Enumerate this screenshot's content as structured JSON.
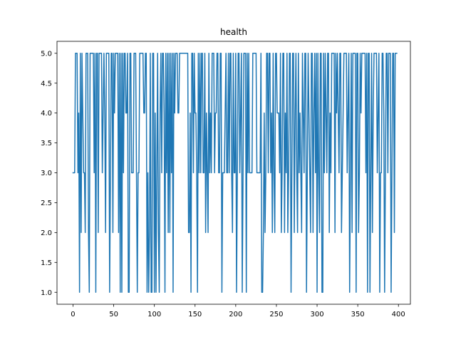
{
  "chart_data": {
    "type": "line",
    "title": "health",
    "xlabel": "",
    "ylabel": "",
    "xlim": [
      -19.7,
      414.7
    ],
    "ylim": [
      0.8,
      5.2
    ],
    "xticks": [
      0,
      50,
      100,
      150,
      200,
      250,
      300,
      350,
      400
    ],
    "xtick_labels": [
      "0",
      "50",
      "100",
      "150",
      "200",
      "250",
      "300",
      "350",
      "400"
    ],
    "yticks": [
      1.0,
      1.5,
      2.0,
      2.5,
      3.0,
      3.5,
      4.0,
      4.5,
      5.0
    ],
    "ytick_labels": [
      "1.0",
      "1.5",
      "2.0",
      "2.5",
      "3.0",
      "3.5",
      "4.0",
      "4.5",
      "5.0"
    ],
    "grid": false,
    "legend": "none",
    "series": [
      {
        "color": "#1f77b4",
        "x_start": 0,
        "x_step": 1,
        "values": [
          3,
          3,
          3,
          5,
          5,
          5,
          3,
          4,
          1,
          5,
          2,
          5,
          4,
          3,
          3,
          2,
          5,
          5,
          5,
          2,
          1,
          5,
          5,
          5,
          5,
          5,
          3,
          5,
          1,
          5,
          5,
          2,
          5,
          5,
          5,
          5,
          3,
          4,
          5,
          4,
          2,
          5,
          5,
          5,
          5,
          1,
          3,
          5,
          5,
          2,
          5,
          4,
          5,
          5,
          5,
          5,
          2,
          5,
          1,
          5,
          1,
          5,
          3,
          5,
          5,
          4,
          4,
          5,
          1,
          1,
          5,
          5,
          3,
          3,
          3,
          5,
          5,
          5,
          3,
          1,
          3,
          3,
          5,
          5,
          5,
          5,
          5,
          4,
          4,
          5,
          5,
          1,
          3,
          1,
          2,
          5,
          1,
          1,
          5,
          5,
          1,
          4,
          1,
          3,
          5,
          2,
          1,
          4,
          5,
          3,
          5,
          5,
          4,
          1,
          5,
          3,
          5,
          2,
          5,
          2,
          5,
          3,
          5,
          1,
          5,
          4,
          5,
          5,
          5,
          4,
          4,
          5,
          5,
          5,
          5,
          5,
          5,
          5,
          5,
          5,
          5,
          5,
          2,
          2,
          4,
          1,
          5,
          5,
          3,
          5,
          4,
          4,
          3,
          1,
          5,
          3,
          5,
          3,
          5,
          5,
          3,
          3,
          5,
          2,
          4,
          3,
          2,
          5,
          3,
          4,
          3,
          5,
          5,
          5,
          3,
          4,
          4,
          5,
          5,
          3,
          3,
          5,
          5,
          1,
          3,
          3,
          3,
          4,
          5,
          3,
          3,
          5,
          3,
          5,
          5,
          3,
          2,
          5,
          3,
          3,
          5,
          1,
          3,
          5,
          5,
          3,
          4,
          5,
          1,
          3,
          5,
          5,
          5,
          1,
          5,
          3,
          5,
          3,
          3,
          3,
          3,
          5,
          5,
          5,
          5,
          5,
          3,
          3,
          3,
          3,
          3,
          5,
          1,
          1,
          2,
          4,
          2,
          3,
          5,
          5,
          3,
          5,
          5,
          3,
          4,
          2,
          5,
          3,
          2,
          5,
          5,
          4,
          4,
          4,
          3,
          5,
          2,
          3,
          5,
          5,
          2,
          4,
          3,
          5,
          2,
          3,
          5,
          5,
          1,
          3,
          5,
          5,
          2,
          4,
          5,
          3,
          2,
          5,
          3,
          4,
          3,
          2,
          5,
          4,
          3,
          5,
          5,
          1,
          3,
          5,
          4,
          3,
          2,
          5,
          5,
          2,
          4,
          5,
          3,
          5,
          1,
          5,
          3,
          2,
          5,
          5,
          1,
          1,
          5,
          3,
          5,
          4,
          3,
          5,
          5,
          2,
          4,
          3,
          5,
          5,
          5,
          5,
          2,
          5,
          4,
          5,
          4,
          3,
          5,
          5,
          2,
          3,
          4,
          5,
          5,
          5,
          5,
          3,
          4,
          5,
          1,
          3,
          5,
          2,
          5,
          5,
          5,
          5,
          1,
          5,
          5,
          2,
          3,
          5,
          4,
          5,
          5,
          5,
          5,
          5,
          3,
          5,
          1,
          5,
          5,
          1,
          3,
          5,
          2,
          4,
          5,
          5,
          5,
          5,
          3,
          4,
          5,
          1,
          3,
          3,
          5,
          5,
          4,
          1,
          3,
          5,
          5,
          3,
          5,
          5,
          5,
          1,
          3,
          5,
          5,
          2,
          5,
          5,
          5
        ]
      }
    ]
  }
}
